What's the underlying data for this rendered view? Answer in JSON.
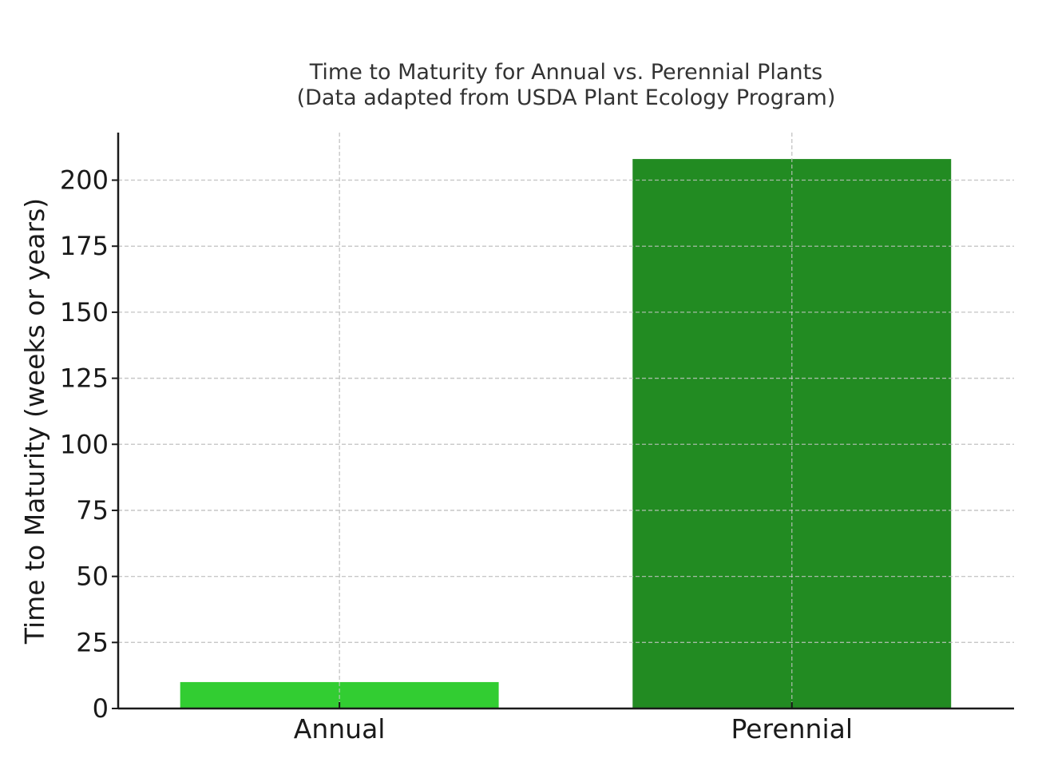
{
  "chart_data": {
    "type": "bar",
    "title": "Time to Maturity for Annual vs. Perennial Plants",
    "subtitle": "(Data adapted from USDA Plant Ecology Program)",
    "xlabel": "",
    "ylabel": "Time to Maturity (weeks or years)",
    "categories": [
      "Annual",
      "Perennial"
    ],
    "values": [
      10,
      208
    ],
    "colors": [
      "#32cd32",
      "#228b22"
    ],
    "ylim": [
      0,
      218
    ],
    "yticks": [
      0,
      25,
      50,
      75,
      100,
      125,
      150,
      175,
      200
    ],
    "grid": true
  }
}
